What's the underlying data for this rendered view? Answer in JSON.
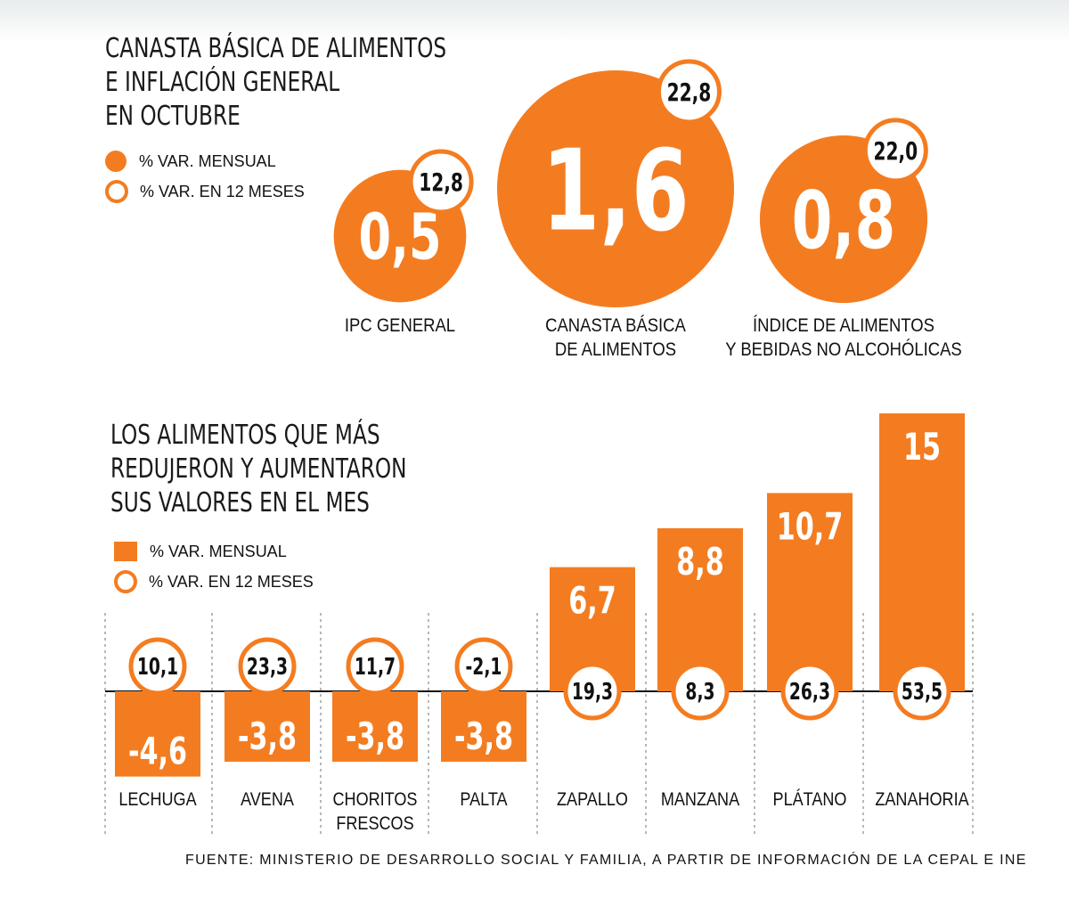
{
  "circles_section": {
    "title_lines": [
      "CANASTA BÁSICA DE ALIMENTOS",
      "E INFLACIÓN GENERAL",
      "EN OCTUBRE"
    ],
    "legend": {
      "monthly": "% VAR. MENSUAL",
      "annual": "% VAR. EN 12 MESES"
    }
  },
  "bars_section": {
    "title_lines": [
      "LOS ALIMENTOS QUE MÁS",
      "REDUJERON Y AUMENTARON",
      "SUS VALORES EN EL MES"
    ],
    "legend": {
      "monthly": "% VAR. MENSUAL",
      "annual": "% VAR. EN 12 MESES"
    }
  },
  "footer": "FUENTE: MINISTERIO DE DESARROLLO SOCIAL Y FAMILIA, A PARTIR DE INFORMACIÓN DE LA CEPAL E INE",
  "colors": {
    "accent": "#f47c20",
    "text": "#111111"
  },
  "chart_data": [
    {
      "type": "bubble",
      "categories": [
        [
          "IPC GENERAL"
        ],
        [
          "CANASTA BÁSICA",
          "DE ALIMENTOS"
        ],
        [
          "ÍNDICE DE ALIMENTOS",
          "Y BEBIDAS NO ALCOHÓLICAS"
        ]
      ],
      "series": [
        {
          "name": "% VAR. MENSUAL",
          "values": [
            "0,5",
            "1,6",
            "0,8"
          ]
        },
        {
          "name": "% VAR. EN 12 MESES",
          "values": [
            "12,8",
            "22,8",
            "22,0"
          ]
        }
      ]
    },
    {
      "type": "bar",
      "categories": [
        [
          "LECHUGA"
        ],
        [
          "AVENA"
        ],
        [
          "CHORITOS",
          "FRESCOS"
        ],
        [
          "PALTA"
        ],
        [
          "ZAPALLO"
        ],
        [
          "MANZANA"
        ],
        [
          "PLÁTANO"
        ],
        [
          "ZANAHORIA"
        ]
      ],
      "series": [
        {
          "name": "% VAR. MENSUAL",
          "values": [
            "-4,6",
            "-3,8",
            "-3,8",
            "-3,8",
            "6,7",
            "8,8",
            "10,7",
            "15"
          ]
        },
        {
          "name": "% VAR. EN 12 MESES",
          "values": [
            "10,1",
            "23,3",
            "11,7",
            "-2,1",
            "19,3",
            "8,3",
            "26,3",
            "53,5"
          ]
        }
      ]
    }
  ]
}
